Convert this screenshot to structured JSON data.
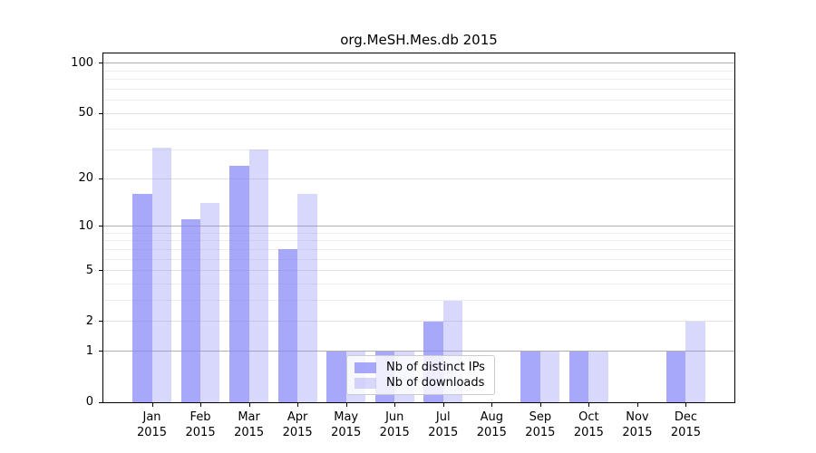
{
  "title": "org.MeSH.Mes.db 2015",
  "chart_data": {
    "type": "bar",
    "title": "org.MeSH.Mes.db 2015",
    "year": "2015",
    "categories": [
      "Jan 2015",
      "Feb 2015",
      "Mar 2015",
      "Apr 2015",
      "May 2015",
      "Jun 2015",
      "Jul 2015",
      "Aug 2015",
      "Sep 2015",
      "Oct 2015",
      "Nov 2015",
      "Dec 2015"
    ],
    "months": [
      "Jan",
      "Feb",
      "Mar",
      "Apr",
      "May",
      "Jun",
      "Jul",
      "Aug",
      "Sep",
      "Oct",
      "Nov",
      "Dec"
    ],
    "series": [
      {
        "name": "Nb of distinct IPs",
        "color": "rgba(135,135,248,0.72)",
        "values": [
          16,
          11,
          24,
          7,
          1,
          1,
          2,
          0,
          1,
          1,
          0,
          1
        ]
      },
      {
        "name": "Nb of downloads",
        "color": "rgba(135,135,248,0.32)",
        "values": [
          31,
          14,
          30,
          16,
          1,
          1,
          3,
          0,
          1,
          1,
          0,
          2
        ]
      }
    ],
    "y_scale": "log10(1+value)",
    "ylim": [
      0,
      113
    ],
    "yticks": [
      0,
      1,
      2,
      5,
      10,
      20,
      50,
      100
    ],
    "minor_gridlines": [
      3,
      4,
      6,
      7,
      8,
      9,
      30,
      40,
      60,
      70,
      80,
      90
    ],
    "emphasized_gridlines": [
      1,
      10,
      100
    ],
    "grid": true,
    "legend_position": "lower center",
    "colors": {
      "grid_minor": "#ededed",
      "grid_major": "#e2e2e2",
      "grid_decade": "#b0b0b0",
      "axis": "#000000"
    }
  }
}
